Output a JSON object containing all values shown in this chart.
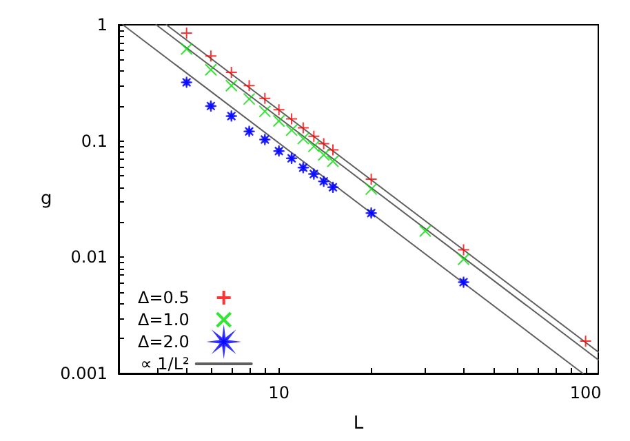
{
  "chart_data": {
    "type": "scatter",
    "xlabel": "L",
    "ylabel": "g",
    "log": "xy",
    "grid": false,
    "legend": "bottom left",
    "xlim": [
      3,
      110
    ],
    "ylim": [
      0.001,
      1
    ],
    "xticks": [
      {
        "value": 3,
        "label": null
      },
      {
        "value": 4,
        "label": null
      },
      {
        "value": 5,
        "label": null
      },
      {
        "value": 6,
        "label": null
      },
      {
        "value": 7,
        "label": null
      },
      {
        "value": 8,
        "label": null
      },
      {
        "value": 9,
        "label": null
      },
      10,
      {
        "value": 20,
        "label": null
      },
      {
        "value": 30,
        "label": null
      },
      {
        "value": 40,
        "label": null
      },
      {
        "value": 50,
        "label": null
      },
      {
        "value": 60,
        "label": null
      },
      {
        "value": 70,
        "label": null
      },
      {
        "value": 80,
        "label": null
      },
      {
        "value": 90,
        "label": null
      },
      100
    ],
    "yticks": [
      0.001,
      {
        "value": 0.002,
        "label": null
      },
      {
        "value": 0.003,
        "label": null
      },
      {
        "value": 0.004,
        "label": null
      },
      {
        "value": 0.005,
        "label": null
      },
      {
        "value": 0.006,
        "label": null
      },
      {
        "value": 0.007,
        "label": null
      },
      {
        "value": 0.008,
        "label": null
      },
      {
        "value": 0.009,
        "label": null
      },
      0.01,
      {
        "value": 0.02,
        "label": null
      },
      {
        "value": 0.03,
        "label": null
      },
      {
        "value": 0.04,
        "label": null
      },
      {
        "value": 0.05,
        "label": null
      },
      {
        "value": 0.06,
        "label": null
      },
      {
        "value": 0.07,
        "label": null
      },
      {
        "value": 0.08,
        "label": null
      },
      {
        "value": 0.09,
        "label": null
      },
      0.1,
      {
        "value": 0.2,
        "label": null
      },
      {
        "value": 0.3,
        "label": null
      },
      {
        "value": 0.4,
        "label": null
      },
      {
        "value": 0.5,
        "label": null
      },
      {
        "value": 0.6,
        "label": null
      },
      {
        "value": 0.7,
        "label": null
      },
      {
        "value": 0.8,
        "label": null
      },
      {
        "value": 0.9,
        "label": null
      },
      1
    ],
    "series": [
      {
        "name": "Δ=0.5",
        "color": "#ff0000",
        "marker": "plus",
        "x": [
          5,
          6,
          7,
          8,
          9,
          10,
          11,
          12,
          13,
          14,
          15,
          20,
          40,
          100
        ],
        "values": [
          0.85,
          0.54,
          0.39,
          0.3,
          0.233,
          0.186,
          0.155,
          0.13,
          0.11,
          0.095,
          0.084,
          0.047,
          0.0116,
          0.0019
        ]
      },
      {
        "name": "Δ=1.0",
        "color": "#00e000",
        "marker": "cross",
        "x": [
          5,
          6,
          7,
          8,
          9,
          10,
          11,
          12,
          13,
          14,
          15,
          20,
          30,
          40
        ],
        "values": [
          0.62,
          0.41,
          0.3,
          0.23,
          0.18,
          0.149,
          0.124,
          0.105,
          0.09,
          0.076,
          0.067,
          0.0386,
          0.0168,
          0.0096
        ]
      },
      {
        "name": "Δ=2.0",
        "color": "#0000ff",
        "marker": "star",
        "x": [
          5,
          6,
          7,
          8,
          9,
          10,
          11,
          12,
          13,
          14,
          15,
          20,
          40
        ],
        "values": [
          0.32,
          0.2,
          0.164,
          0.121,
          0.103,
          0.082,
          0.071,
          0.059,
          0.052,
          0.045,
          0.04,
          0.024,
          0.0061
        ]
      },
      {
        "name": "∝ 1/L²",
        "type": "line",
        "color": "#606060",
        "marker": "none",
        "line_style": "solid",
        "x": [
          4.3,
          110
        ],
        "values": [
          1,
          0.00153
        ]
      },
      {
        "type": "line",
        "color": "#606060",
        "marker": "none",
        "line_style": "solid",
        "x": [
          3.98,
          110
        ],
        "values": [
          1,
          0.00131
        ]
      },
      {
        "type": "line",
        "color": "#606060",
        "marker": "none",
        "line_style": "solid",
        "x": [
          3.1,
          98
        ],
        "values": [
          1,
          0.001
        ]
      }
    ]
  }
}
